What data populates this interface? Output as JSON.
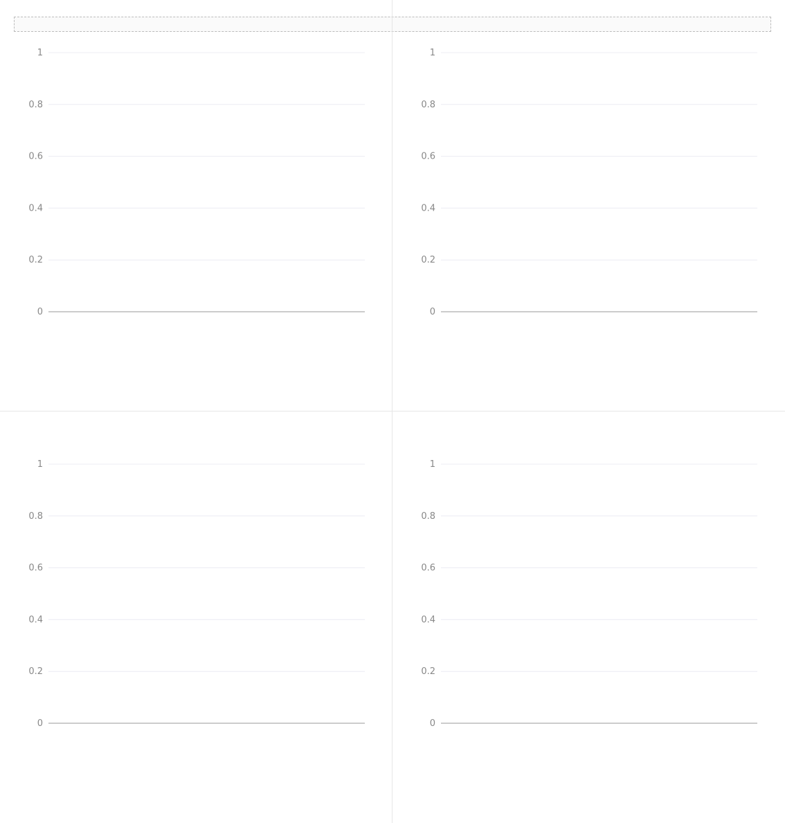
{
  "note": "",
  "footer": "",
  "chart_data": [
    {
      "type": "line",
      "title": "",
      "categories": [],
      "series": [],
      "ylim": [
        0,
        1
      ]
    },
    {
      "type": "line",
      "title": "",
      "categories": [],
      "series": [],
      "ylim": [
        0,
        1
      ]
    },
    {
      "type": "line",
      "title": "",
      "categories": [],
      "series": [],
      "ylim": [
        0,
        1
      ]
    },
    {
      "type": "line",
      "title": "",
      "categories": [],
      "series": [],
      "ylim": [
        0,
        1
      ]
    }
  ]
}
